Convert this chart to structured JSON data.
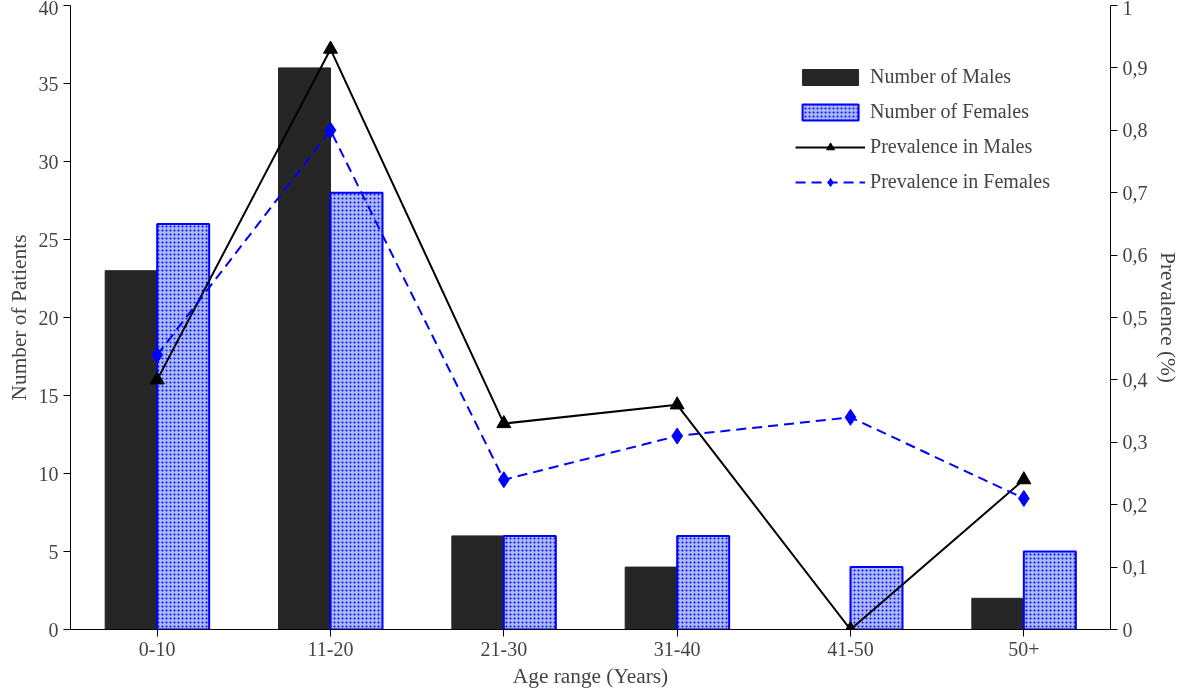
{
  "chart_data": {
    "type": "bar",
    "xlabel": "Age range (Years)",
    "ylabel": "Number of Patients",
    "y2label": "Prevalence (%)",
    "categories": [
      "0-10",
      "11-20",
      "21-30",
      "31-40",
      "41-50",
      "50+"
    ],
    "series": [
      {
        "name": "Number of Males",
        "color": "#262626",
        "values": [
          23,
          36,
          6,
          4,
          0,
          2
        ]
      },
      {
        "name": "Number of Females",
        "color": "#aab8f5",
        "values": [
          26,
          28,
          6,
          6,
          4,
          5
        ]
      },
      {
        "name": "Prevalence in Males",
        "type": "line",
        "axis": "y2",
        "color": "#000000",
        "marker": "triangle",
        "line_style": "solid",
        "values": [
          0.4,
          0.93,
          0.33,
          0.36,
          0,
          0.24
        ]
      },
      {
        "name": "Prevalence in Females",
        "type": "line",
        "axis": "y2",
        "color": "#0000ff",
        "marker": "diamond",
        "line_style": "dashed",
        "values": [
          0.44,
          0.8,
          0.24,
          0.31,
          0.34,
          0.21
        ]
      }
    ],
    "ylim": [
      0,
      40
    ],
    "yticks": [
      0,
      5,
      10,
      15,
      20,
      25,
      30,
      35,
      40
    ],
    "y2lim": [
      0,
      1
    ],
    "y2ticks": [
      0,
      {
        "value": 0.1,
        "label": "0,1"
      },
      {
        "value": 0.2,
        "label": "0,2"
      },
      {
        "value": 0.3,
        "label": "0,3"
      },
      {
        "value": 0.4,
        "label": "0,4"
      },
      {
        "value": 0.5,
        "label": "0,5"
      },
      {
        "value": 0.6,
        "label": "0,6"
      },
      {
        "value": 0.7,
        "label": "0,7"
      },
      {
        "value": 0.8,
        "label": "0,8"
      },
      {
        "value": 0.9,
        "label": "0,9"
      },
      1
    ],
    "grid": false,
    "legend": "top right"
  }
}
